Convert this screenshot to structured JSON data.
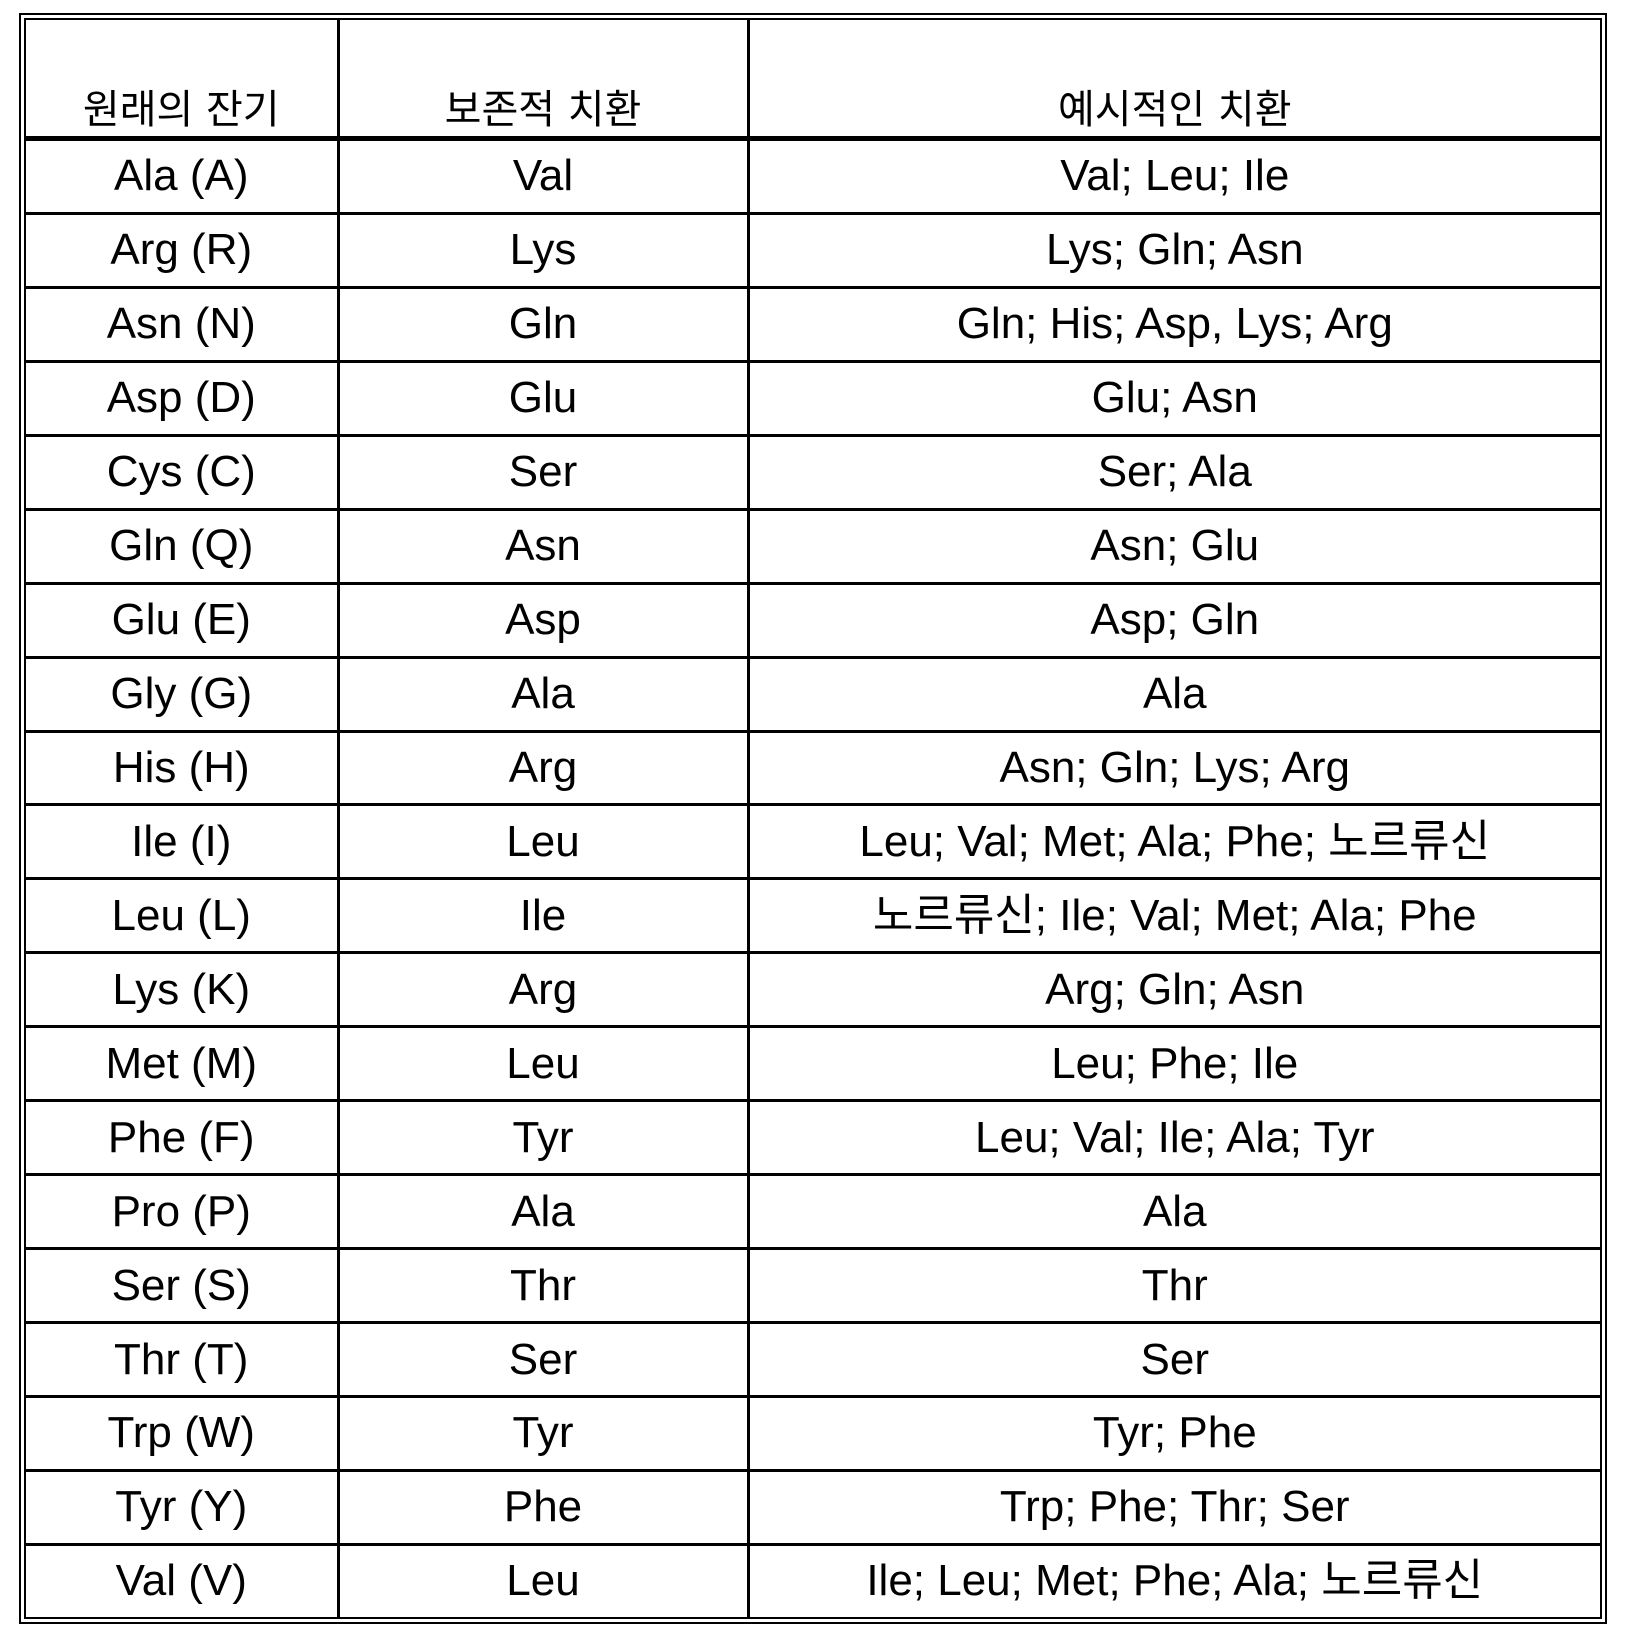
{
  "headers": [
    "원래의 잔기",
    "보존적 치환",
    "예시적인 치환"
  ],
  "rows": [
    [
      "Ala (A)",
      "Val",
      "Val; Leu; Ile"
    ],
    [
      "Arg (R)",
      "Lys",
      "Lys; Gln; Asn"
    ],
    [
      "Asn (N)",
      "Gln",
      "Gln; His; Asp, Lys; Arg"
    ],
    [
      "Asp (D)",
      "Glu",
      "Glu; Asn"
    ],
    [
      "Cys (C)",
      "Ser",
      "Ser; Ala"
    ],
    [
      "Gln (Q)",
      "Asn",
      "Asn; Glu"
    ],
    [
      "Glu (E)",
      "Asp",
      "Asp; Gln"
    ],
    [
      "Gly (G)",
      "Ala",
      "Ala"
    ],
    [
      "His (H)",
      "Arg",
      "Asn; Gln; Lys; Arg"
    ],
    [
      "Ile (I)",
      "Leu",
      "Leu; Val; Met; Ala; Phe; 노르류신"
    ],
    [
      "Leu (L)",
      "Ile",
      "노르류신; Ile; Val; Met; Ala; Phe"
    ],
    [
      "Lys (K)",
      "Arg",
      "Arg; Gln; Asn"
    ],
    [
      "Met (M)",
      "Leu",
      "Leu; Phe; Ile"
    ],
    [
      "Phe (F)",
      "Tyr",
      "Leu; Val; Ile; Ala; Tyr"
    ],
    [
      "Pro (P)",
      "Ala",
      "Ala"
    ],
    [
      "Ser (S)",
      "Thr",
      "Thr"
    ],
    [
      "Thr (T)",
      "Ser",
      "Ser"
    ],
    [
      "Trp (W)",
      "Tyr",
      "Tyr; Phe"
    ],
    [
      "Tyr (Y)",
      "Phe",
      "Trp; Phe; Thr; Ser"
    ],
    [
      "Val (V)",
      "Leu",
      "Ile; Leu; Met; Phe; Ala; 노르류신"
    ]
  ]
}
